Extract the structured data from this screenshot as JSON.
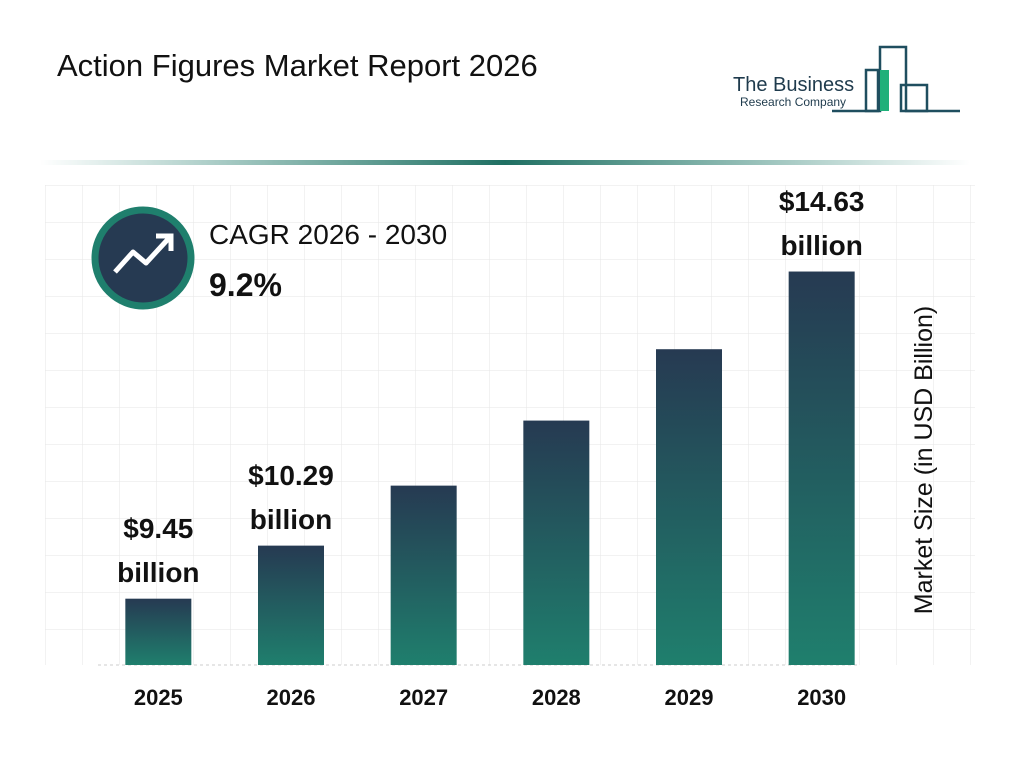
{
  "title": "Action Figures Market Report 2026",
  "logo": {
    "line1": "The Business",
    "line2": "Research Company"
  },
  "cagr": {
    "label": "CAGR 2026 - 2030",
    "value": "9.2%"
  },
  "chart_data": {
    "type": "bar",
    "y_axis_label": "Market Size (in USD Billion)",
    "categories": [
      "2025",
      "2026",
      "2027",
      "2028",
      "2029",
      "2030"
    ],
    "values": [
      9.45,
      10.29,
      11.24,
      12.27,
      13.4,
      14.63
    ],
    "value_labels": [
      "$9.45 billion",
      "$10.29 billion",
      null,
      null,
      null,
      "$14.63 billion"
    ],
    "colors": [
      "#263a52",
      "#1f7f6d"
    ],
    "ylim": [
      8.4,
      16
    ]
  }
}
